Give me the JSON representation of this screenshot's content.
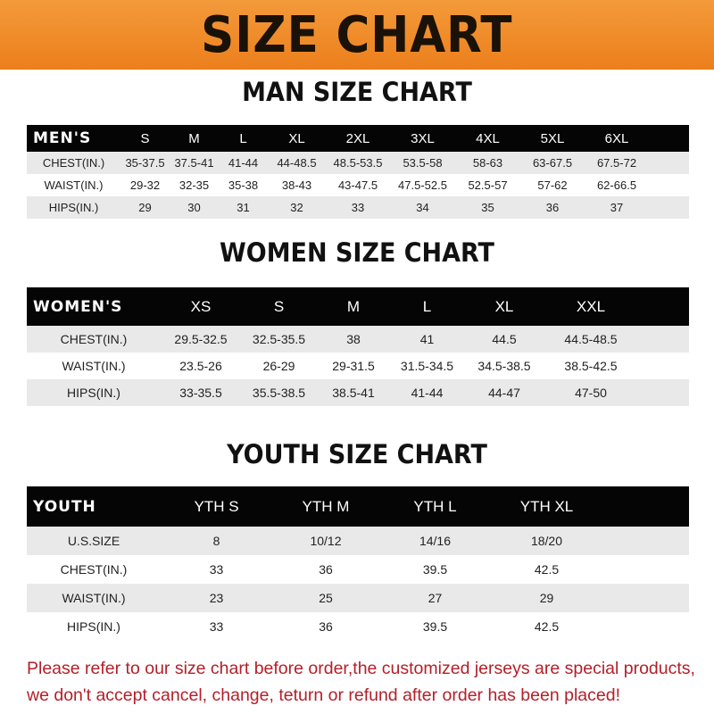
{
  "banner": "SIZE CHART",
  "men": {
    "title": "MAN SIZE CHART",
    "header": [
      "MEN'S",
      "S",
      "M",
      "L",
      "XL",
      "2XL",
      "3XL",
      "4XL",
      "5XL",
      "6XL"
    ],
    "rows": [
      [
        "CHEST(IN.)",
        "35-37.5",
        "37.5-41",
        "41-44",
        "44-48.5",
        "48.5-53.5",
        "53.5-58",
        "58-63",
        "63-67.5",
        "67.5-72"
      ],
      [
        "WAIST(IN.)",
        "29-32",
        "32-35",
        "35-38",
        "38-43",
        "43-47.5",
        "47.5-52.5",
        "52.5-57",
        "57-62",
        "62-66.5"
      ],
      [
        "HIPS(IN.)",
        "29",
        "30",
        "31",
        "32",
        "33",
        "34",
        "35",
        "36",
        "37"
      ]
    ]
  },
  "women": {
    "title": "WOMEN SIZE CHART",
    "header": [
      "WOMEN'S",
      "XS",
      "S",
      "M",
      "L",
      "XL",
      "XXL"
    ],
    "rows": [
      [
        "CHEST(IN.)",
        "29.5-32.5",
        "32.5-35.5",
        "38",
        "41",
        "44.5",
        "44.5-48.5"
      ],
      [
        "WAIST(IN.)",
        "23.5-26",
        "26-29",
        "29-31.5",
        "31.5-34.5",
        "34.5-38.5",
        "38.5-42.5"
      ],
      [
        "HIPS(IN.)",
        "33-35.5",
        "35.5-38.5",
        "38.5-41",
        "41-44",
        "44-47",
        "47-50"
      ]
    ]
  },
  "youth": {
    "title": "YOUTH SIZE CHART",
    "header": [
      "YOUTH",
      "YTH S",
      "YTH M",
      "YTH L",
      "YTH XL"
    ],
    "rows": [
      [
        "U.S.SIZE",
        "8",
        "10/12",
        "14/16",
        "18/20"
      ],
      [
        "CHEST(IN.)",
        "33",
        "36",
        "39.5",
        "42.5"
      ],
      [
        "WAIST(IN.)",
        "23",
        "25",
        "27",
        "29"
      ],
      [
        "HIPS(IN.)",
        "33",
        "36",
        "39.5",
        "42.5"
      ]
    ]
  },
  "note": {
    "line1": "Please refer to our size chart before order,the customized jerseys are special products,",
    "line2": "we don't accept cancel, change, teturn or refund after order has been placed!"
  },
  "colors": {
    "banner": "#ee8a26",
    "header_row": "#050505",
    "note": "#b3202a"
  }
}
